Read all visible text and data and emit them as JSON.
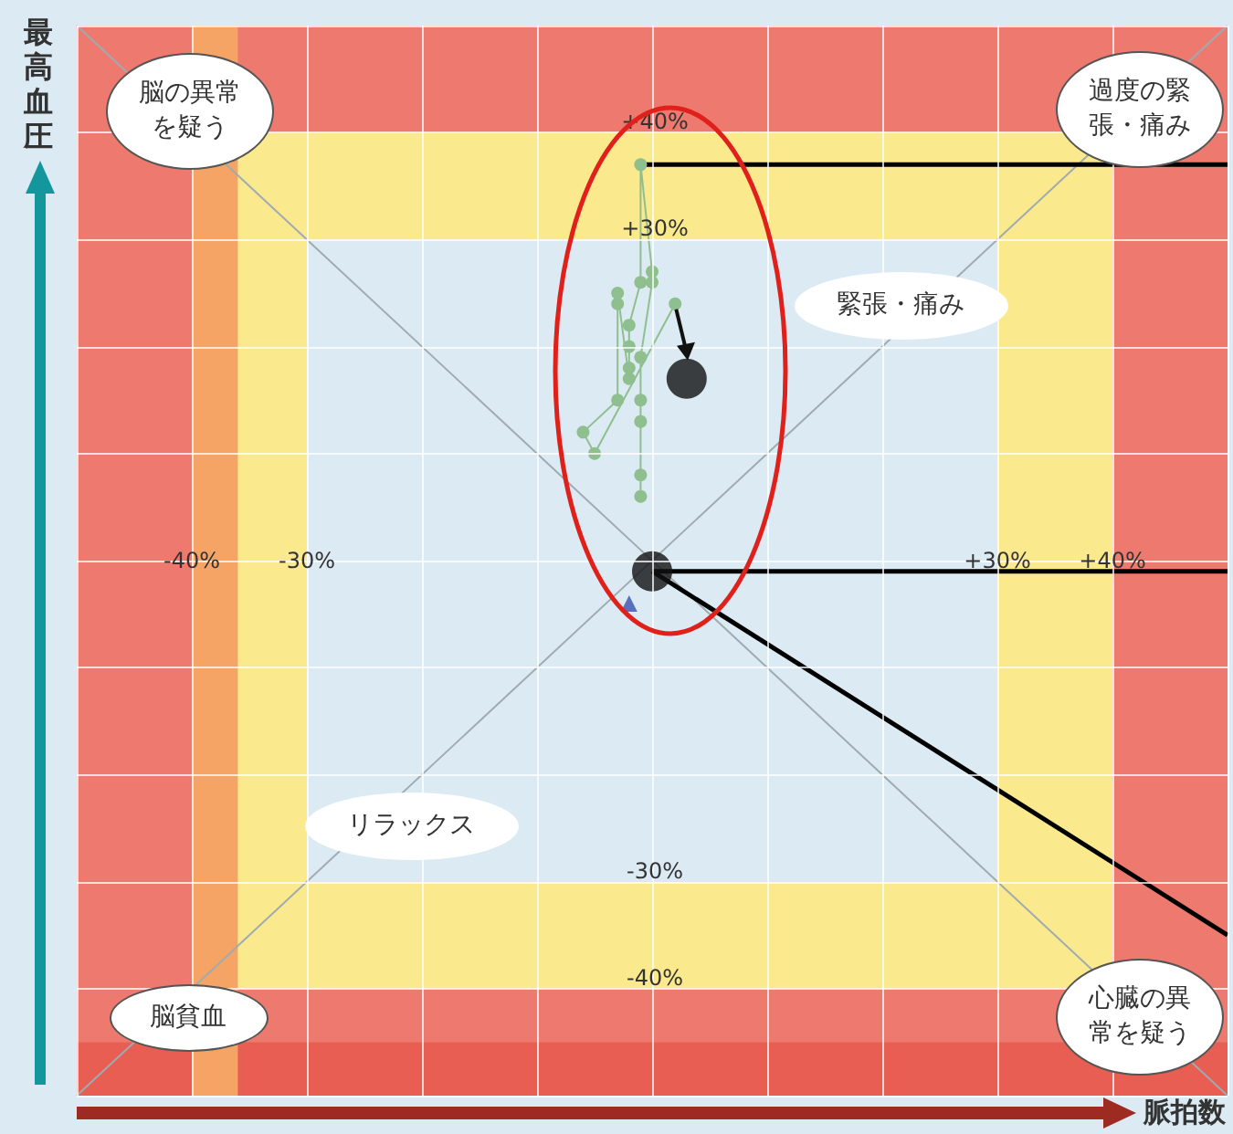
{
  "chart_data": {
    "type": "line",
    "xlabel": "脈拍数",
    "ylabel": "最高血圧",
    "xlim": [
      -50,
      50
    ],
    "ylim": [
      -50,
      50
    ],
    "xticks": [
      {
        "value": -50,
        "label": null
      },
      {
        "value": -40,
        "label": "-40%"
      },
      {
        "value": -30,
        "label": "-30%"
      },
      {
        "value": -20,
        "label": null
      },
      {
        "value": -10,
        "label": null
      },
      {
        "value": 0,
        "label": null
      },
      {
        "value": 10,
        "label": null
      },
      {
        "value": 20,
        "label": null
      },
      {
        "value": 30,
        "label": "+30%"
      },
      {
        "value": 40,
        "label": "+40%"
      },
      {
        "value": 50,
        "label": null
      }
    ],
    "yticks": [
      {
        "value": -50,
        "label": null
      },
      {
        "value": -40,
        "label": "-40%"
      },
      {
        "value": -30,
        "label": "-30%"
      },
      {
        "value": -20,
        "label": null
      },
      {
        "value": -10,
        "label": null
      },
      {
        "value": 0,
        "label": null
      },
      {
        "value": 10,
        "label": null
      },
      {
        "value": 20,
        "label": null
      },
      {
        "value": 30,
        "label": "+30%"
      },
      {
        "value": 40,
        "label": "+40%"
      },
      {
        "value": 50,
        "label": null
      }
    ],
    "grid": true,
    "marker": "circle",
    "bands": [
      {
        "axis": "x",
        "from": -40,
        "to": -30,
        "color": "#fbe98e"
      },
      {
        "axis": "x",
        "from": 30,
        "to": 40,
        "color": "#fbe98e"
      },
      {
        "axis": "y",
        "from": -40,
        "to": -30,
        "color": "#fbe98e"
      },
      {
        "axis": "y",
        "from": 30,
        "to": 40,
        "color": "#fbe98e"
      },
      {
        "axis": "x",
        "from": -50,
        "to": -40,
        "color": "#ee7a6f"
      },
      {
        "axis": "x",
        "from": 40,
        "to": 50,
        "color": "#ee7a6f"
      },
      {
        "axis": "y",
        "from": 40,
        "to": 50,
        "color": "#ee7a6f"
      },
      {
        "axis": "y",
        "from": -50,
        "to": -40,
        "color": "#ee7a6f"
      },
      {
        "axis": "y",
        "from": -50,
        "to": -45,
        "color": "#e85e52"
      },
      {
        "axis": "x",
        "from": -40,
        "to": -36,
        "color": "#f5a465"
      }
    ],
    "series": [
      {
        "type": "line",
        "marker": "none",
        "color": "#9eabb0",
        "x": [
          -50,
          50
        ],
        "values": [
          -50,
          50
        ]
      },
      {
        "type": "line",
        "marker": "none",
        "color": "#9eabb0",
        "x": [
          -50,
          50
        ],
        "values": [
          50,
          -50
        ]
      },
      {
        "color": "#8fbf8f",
        "x": [
          -1,
          -1,
          -1,
          -1,
          -1,
          0,
          0,
          -1,
          -1,
          -2,
          -2,
          -2,
          -2,
          -3,
          -3,
          -3,
          -6,
          -5,
          2
        ],
        "values": [
          6,
          8,
          13,
          15,
          19,
          26,
          27,
          37,
          26,
          22,
          20,
          18,
          17,
          25,
          24,
          15,
          12,
          10,
          24
        ]
      },
      {
        "type": "scatter",
        "marker": "triangle",
        "color": "#3a4fb0",
        "x": [
          -2
        ],
        "values": [
          -4
        ]
      },
      {
        "type": "line",
        "marker": "none",
        "color": "#000000",
        "x": [
          -1,
          50
        ],
        "values": [
          37,
          37
        ]
      },
      {
        "type": "line",
        "marker": "none",
        "color": "#000000",
        "x": [
          0,
          50
        ],
        "values": [
          -1,
          -1
        ]
      },
      {
        "type": "line",
        "marker": "none",
        "color": "#000000",
        "x": [
          0,
          50
        ],
        "values": [
          -1,
          -35
        ]
      },
      {
        "type": "scatter",
        "color": "#111111",
        "x": [
          3,
          0
        ],
        "values": [
          17,
          -1
        ]
      }
    ],
    "annotations": [
      "脳の異常を疑う",
      "過度の緊張・痛み",
      "脳貧血",
      "心臓の異常を疑う",
      "緊張・痛み",
      "リラックス"
    ]
  }
}
